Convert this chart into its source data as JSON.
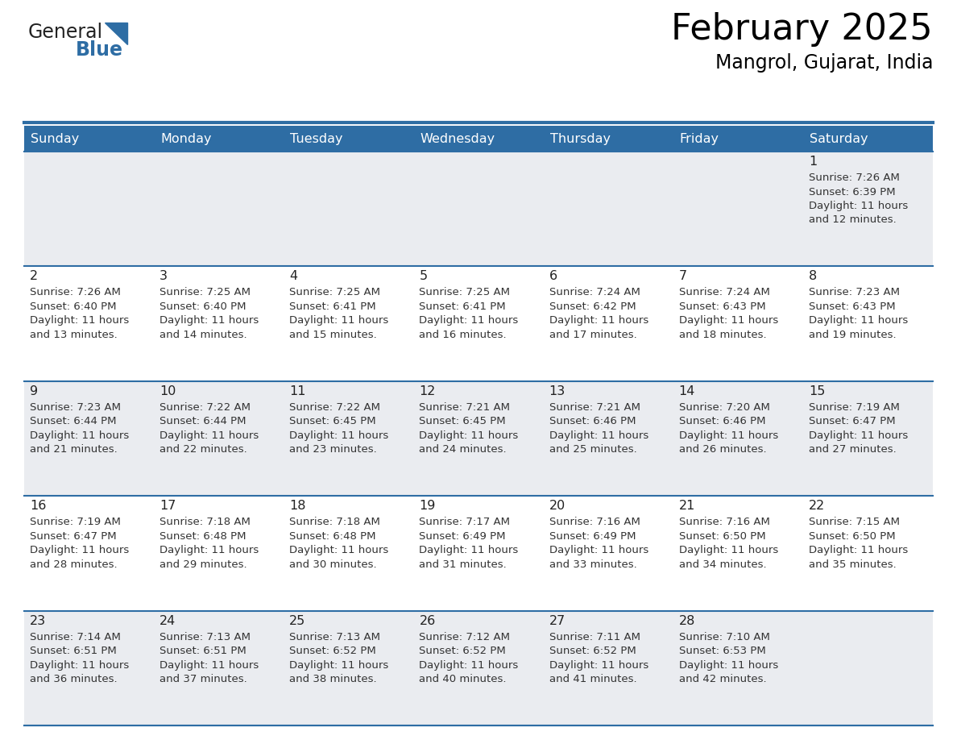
{
  "title": "February 2025",
  "subtitle": "Mangrol, Gujarat, India",
  "header_color": "#2E6DA4",
  "header_text_color": "#FFFFFF",
  "day_names": [
    "Sunday",
    "Monday",
    "Tuesday",
    "Wednesday",
    "Thursday",
    "Friday",
    "Saturday"
  ],
  "cell_bg_even": "#EAECF0",
  "cell_bg_odd": "#FFFFFF",
  "border_color": "#2E6DA4",
  "day_num_color": "#222222",
  "text_color": "#333333",
  "logo_general_color": "#222222",
  "logo_blue_color": "#2E6DA4",
  "calendar_data": [
    [
      null,
      null,
      null,
      null,
      null,
      null,
      {
        "day": 1,
        "sunrise": "7:26 AM",
        "sunset": "6:39 PM",
        "daylight": "11 hours and 12 minutes."
      }
    ],
    [
      {
        "day": 2,
        "sunrise": "7:26 AM",
        "sunset": "6:40 PM",
        "daylight": "11 hours and 13 minutes."
      },
      {
        "day": 3,
        "sunrise": "7:25 AM",
        "sunset": "6:40 PM",
        "daylight": "11 hours and 14 minutes."
      },
      {
        "day": 4,
        "sunrise": "7:25 AM",
        "sunset": "6:41 PM",
        "daylight": "11 hours and 15 minutes."
      },
      {
        "day": 5,
        "sunrise": "7:25 AM",
        "sunset": "6:41 PM",
        "daylight": "11 hours and 16 minutes."
      },
      {
        "day": 6,
        "sunrise": "7:24 AM",
        "sunset": "6:42 PM",
        "daylight": "11 hours and 17 minutes."
      },
      {
        "day": 7,
        "sunrise": "7:24 AM",
        "sunset": "6:43 PM",
        "daylight": "11 hours and 18 minutes."
      },
      {
        "day": 8,
        "sunrise": "7:23 AM",
        "sunset": "6:43 PM",
        "daylight": "11 hours and 19 minutes."
      }
    ],
    [
      {
        "day": 9,
        "sunrise": "7:23 AM",
        "sunset": "6:44 PM",
        "daylight": "11 hours and 21 minutes."
      },
      {
        "day": 10,
        "sunrise": "7:22 AM",
        "sunset": "6:44 PM",
        "daylight": "11 hours and 22 minutes."
      },
      {
        "day": 11,
        "sunrise": "7:22 AM",
        "sunset": "6:45 PM",
        "daylight": "11 hours and 23 minutes."
      },
      {
        "day": 12,
        "sunrise": "7:21 AM",
        "sunset": "6:45 PM",
        "daylight": "11 hours and 24 minutes."
      },
      {
        "day": 13,
        "sunrise": "7:21 AM",
        "sunset": "6:46 PM",
        "daylight": "11 hours and 25 minutes."
      },
      {
        "day": 14,
        "sunrise": "7:20 AM",
        "sunset": "6:46 PM",
        "daylight": "11 hours and 26 minutes."
      },
      {
        "day": 15,
        "sunrise": "7:19 AM",
        "sunset": "6:47 PM",
        "daylight": "11 hours and 27 minutes."
      }
    ],
    [
      {
        "day": 16,
        "sunrise": "7:19 AM",
        "sunset": "6:47 PM",
        "daylight": "11 hours and 28 minutes."
      },
      {
        "day": 17,
        "sunrise": "7:18 AM",
        "sunset": "6:48 PM",
        "daylight": "11 hours and 29 minutes."
      },
      {
        "day": 18,
        "sunrise": "7:18 AM",
        "sunset": "6:48 PM",
        "daylight": "11 hours and 30 minutes."
      },
      {
        "day": 19,
        "sunrise": "7:17 AM",
        "sunset": "6:49 PM",
        "daylight": "11 hours and 31 minutes."
      },
      {
        "day": 20,
        "sunrise": "7:16 AM",
        "sunset": "6:49 PM",
        "daylight": "11 hours and 33 minutes."
      },
      {
        "day": 21,
        "sunrise": "7:16 AM",
        "sunset": "6:50 PM",
        "daylight": "11 hours and 34 minutes."
      },
      {
        "day": 22,
        "sunrise": "7:15 AM",
        "sunset": "6:50 PM",
        "daylight": "11 hours and 35 minutes."
      }
    ],
    [
      {
        "day": 23,
        "sunrise": "7:14 AM",
        "sunset": "6:51 PM",
        "daylight": "11 hours and 36 minutes."
      },
      {
        "day": 24,
        "sunrise": "7:13 AM",
        "sunset": "6:51 PM",
        "daylight": "11 hours and 37 minutes."
      },
      {
        "day": 25,
        "sunrise": "7:13 AM",
        "sunset": "6:52 PM",
        "daylight": "11 hours and 38 minutes."
      },
      {
        "day": 26,
        "sunrise": "7:12 AM",
        "sunset": "6:52 PM",
        "daylight": "11 hours and 40 minutes."
      },
      {
        "day": 27,
        "sunrise": "7:11 AM",
        "sunset": "6:52 PM",
        "daylight": "11 hours and 41 minutes."
      },
      {
        "day": 28,
        "sunrise": "7:10 AM",
        "sunset": "6:53 PM",
        "daylight": "11 hours and 42 minutes."
      },
      null
    ]
  ]
}
